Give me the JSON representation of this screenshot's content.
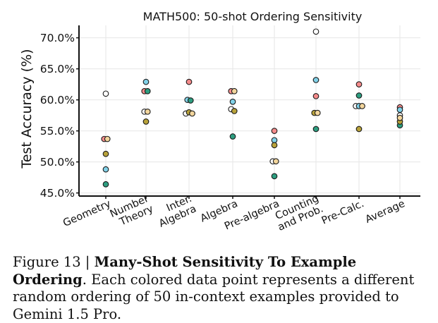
{
  "chart_data": {
    "type": "scatter",
    "title": "MATH500: 50-shot Ordering Sensitivity",
    "xlabel": "",
    "ylabel": "Test Accuracy (%)",
    "ylim": [
      44.5,
      72.0
    ],
    "yticks": [
      45,
      50,
      55,
      60,
      65,
      70
    ],
    "ytick_labels": [
      "45.0%",
      "50.0%",
      "55.0%",
      "60.0%",
      "65.0%",
      "70.0%"
    ],
    "grid": true,
    "categories": [
      "Geometry",
      "Number\nTheory",
      "Inter.\nAlgebra",
      "Algebra",
      "Pre-algebra",
      "Counting\nand Prob.",
      "Pre-Calc.",
      "Average"
    ],
    "series": [
      {
        "color": "#ffffff",
        "values": [
          61.0,
          58.1,
          57.8,
          58.5,
          50.1,
          71.0,
          59.0,
          57.5
        ]
      },
      {
        "color": "#f58b8b",
        "values": [
          53.7,
          61.4,
          62.9,
          61.4,
          55.0,
          60.6,
          62.5,
          58.8
        ]
      },
      {
        "color": "#81d1e8",
        "values": [
          48.8,
          62.9,
          60.0,
          59.7,
          53.5,
          63.2,
          59.0,
          58.4
        ]
      },
      {
        "color": "#2d9e80",
        "values": [
          46.4,
          61.4,
          59.9,
          54.1,
          47.7,
          55.3,
          60.7,
          55.9
        ]
      },
      {
        "color": "#b8a23a",
        "values": [
          51.3,
          56.5,
          58.0,
          58.2,
          52.7,
          57.9,
          55.3,
          56.5
        ]
      },
      {
        "color": "#f2d59c",
        "values": [
          53.7,
          58.1,
          57.8,
          61.4,
          50.1,
          57.9,
          59.0,
          57.1
        ]
      }
    ]
  },
  "caption": {
    "label": "Figure 13 | ",
    "bold": "Many-Shot Sensitivity To Example Ordering",
    "text": ". Each colored data point represents a different random ordering of 50 in-context examples provided to Gemini 1.5 Pro."
  }
}
